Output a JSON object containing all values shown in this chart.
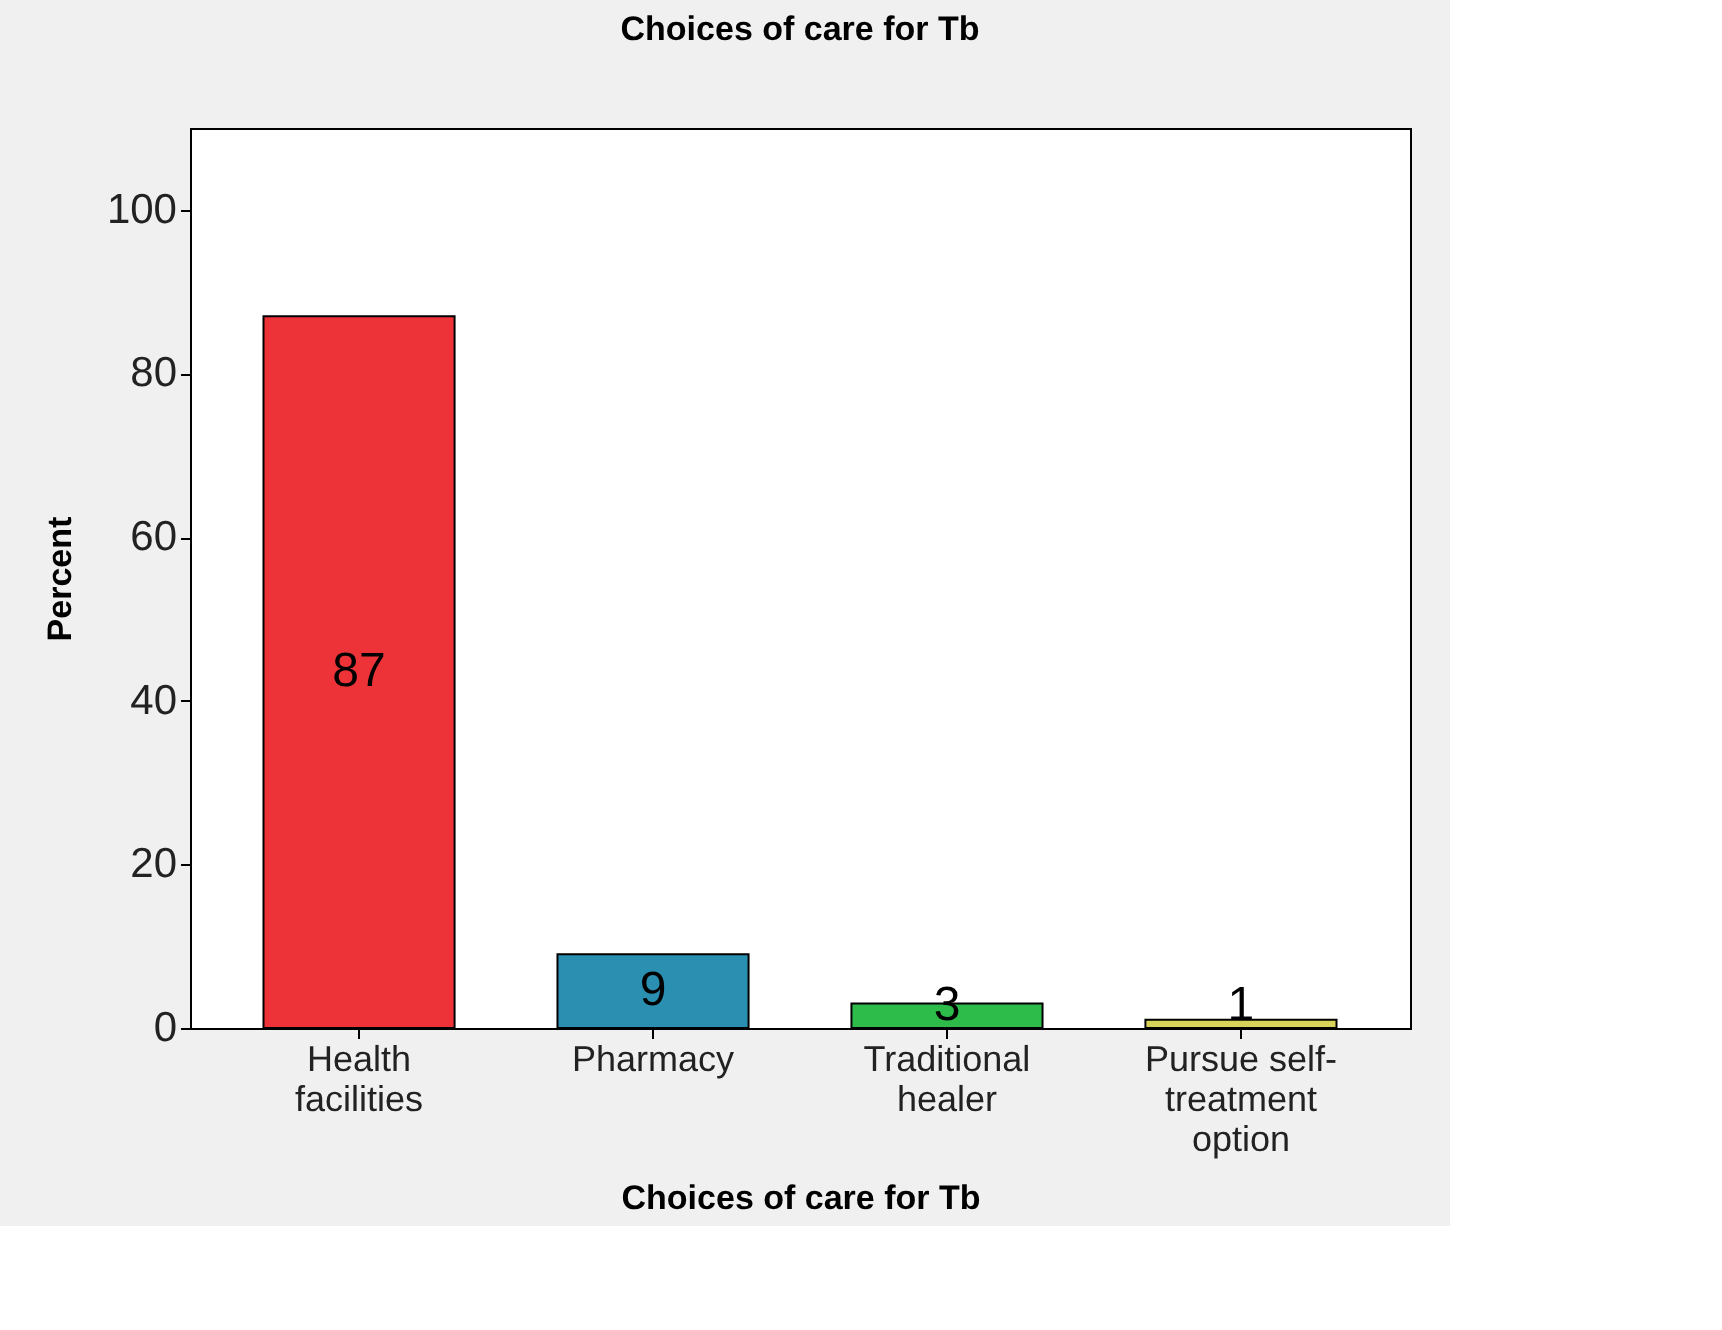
{
  "chart_data": {
    "type": "bar",
    "title": "Choices of care for Tb",
    "xlabel": "Choices of care for Tb",
    "ylabel": "Percent",
    "categories": [
      "Health facilities",
      "Pharmacy",
      "Traditional healer",
      "Pursue self-treatment option"
    ],
    "values": [
      87,
      9,
      3,
      1
    ],
    "colors": [
      "#ee3338",
      "#2a8fb0",
      "#2dbb4a",
      "#d8d45a"
    ],
    "ylim": [
      0,
      110
    ],
    "yticks": [
      0,
      20,
      40,
      60,
      80,
      100
    ],
    "data_labels": true,
    "grid": false,
    "legend": false
  }
}
